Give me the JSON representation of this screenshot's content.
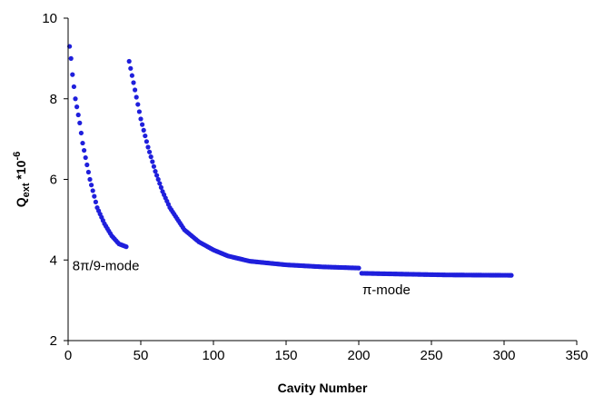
{
  "chart_data": {
    "type": "scatter",
    "xlabel": "Cavity Number",
    "ylabel": {
      "main": "Q",
      "sub": "ext",
      "mid": " *10",
      "sup": "-6"
    },
    "xlim": [
      0,
      350
    ],
    "ylim": [
      2,
      10
    ],
    "xticks": [
      "0",
      "50",
      "100",
      "150",
      "200",
      "250",
      "300",
      "350"
    ],
    "yticks": [
      "2",
      "4",
      "6",
      "8",
      "10"
    ],
    "grid": false,
    "legend": "none",
    "marker_color": "#1f1fdc",
    "annotations": [
      {
        "text": "8π/9-mode",
        "x": 26,
        "y": 3.75
      },
      {
        "text": "π-mode",
        "x": 219,
        "y": 3.15
      }
    ],
    "series": [
      {
        "x_start": 1,
        "x_end": 40,
        "values_at": [
          [
            1,
            9.3
          ],
          [
            2,
            9.0
          ],
          [
            3,
            8.6
          ],
          [
            5,
            8.0
          ],
          [
            8,
            7.4
          ],
          [
            10,
            6.9
          ],
          [
            15,
            6.0
          ],
          [
            20,
            5.3
          ],
          [
            25,
            4.9
          ],
          [
            30,
            4.6
          ],
          [
            35,
            4.4
          ],
          [
            40,
            4.33
          ]
        ]
      },
      {
        "x_start": 42,
        "x_end": 200,
        "values_at": [
          [
            42,
            8.93
          ],
          [
            45,
            8.4
          ],
          [
            50,
            7.5
          ],
          [
            55,
            6.8
          ],
          [
            60,
            6.2
          ],
          [
            65,
            5.7
          ],
          [
            70,
            5.3
          ],
          [
            80,
            4.75
          ],
          [
            90,
            4.45
          ],
          [
            100,
            4.25
          ],
          [
            110,
            4.1
          ],
          [
            125,
            3.97
          ],
          [
            150,
            3.88
          ],
          [
            175,
            3.83
          ],
          [
            200,
            3.8
          ]
        ]
      },
      {
        "x_start": 202,
        "x_end": 305,
        "values_at": [
          [
            202,
            3.67
          ],
          [
            230,
            3.65
          ],
          [
            260,
            3.63
          ],
          [
            305,
            3.62
          ]
        ]
      }
    ]
  }
}
